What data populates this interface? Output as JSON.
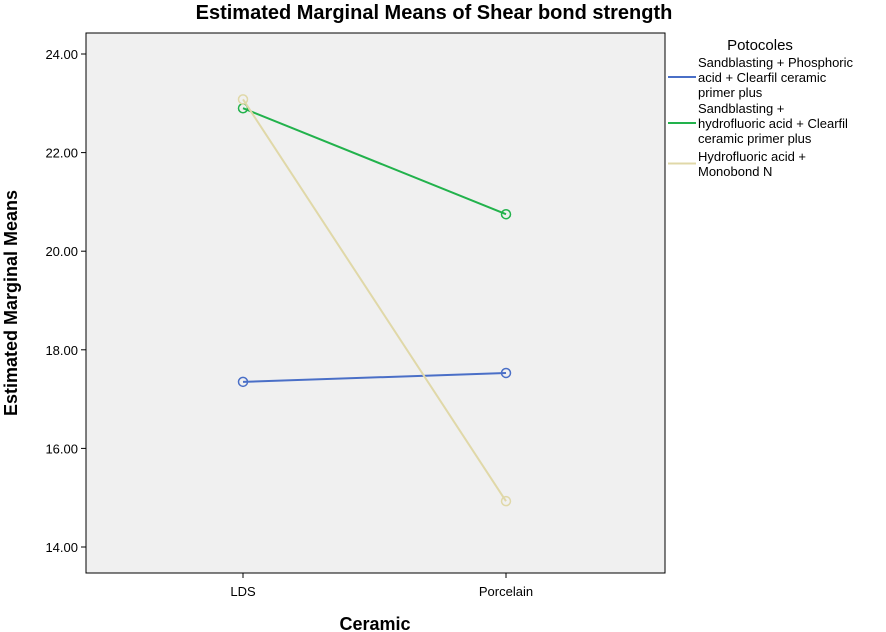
{
  "chart_data": {
    "type": "line",
    "title": "Estimated Marginal Means of Shear bond strength",
    "xlabel": "Ceramic",
    "ylabel": "Estimated Marginal Means",
    "categories": [
      "LDS",
      "Porcelain"
    ],
    "ylim": [
      13.0,
      24.5
    ],
    "yticks": [
      "14.00",
      "16.00",
      "18.00",
      "20.00",
      "22.00",
      "24.00"
    ],
    "ytick_values": [
      14,
      16,
      18,
      20,
      22,
      24
    ],
    "grid": false,
    "legend_title": "Potocoles",
    "legend_position": "right",
    "series": [
      {
        "name": "Sandblasting + Phosphoric acid + Clearfil ceramic primer plus",
        "name_lines": [
          "Sandblasting + Phosphoric",
          "acid + Clearfil ceramic",
          "primer plus"
        ],
        "color": "#4a6fc7",
        "values": [
          17.35,
          17.53
        ]
      },
      {
        "name": "Sandblasting + hydrofluoric acid + Clearfil ceramic primer plus",
        "name_lines": [
          "Sandblasting +",
          "hydrofluoric acid + Clearfil",
          "ceramic primer plus"
        ],
        "color": "#22b24c",
        "values": [
          22.9,
          20.75
        ]
      },
      {
        "name": "Hydrofluoric acid + Monobond N",
        "name_lines": [
          "Hydrofluoric acid +",
          "Monobond N"
        ],
        "color": "#e0d8a8",
        "values": [
          23.08,
          14.93
        ]
      }
    ],
    "plot_background": "#f0f0f0"
  }
}
